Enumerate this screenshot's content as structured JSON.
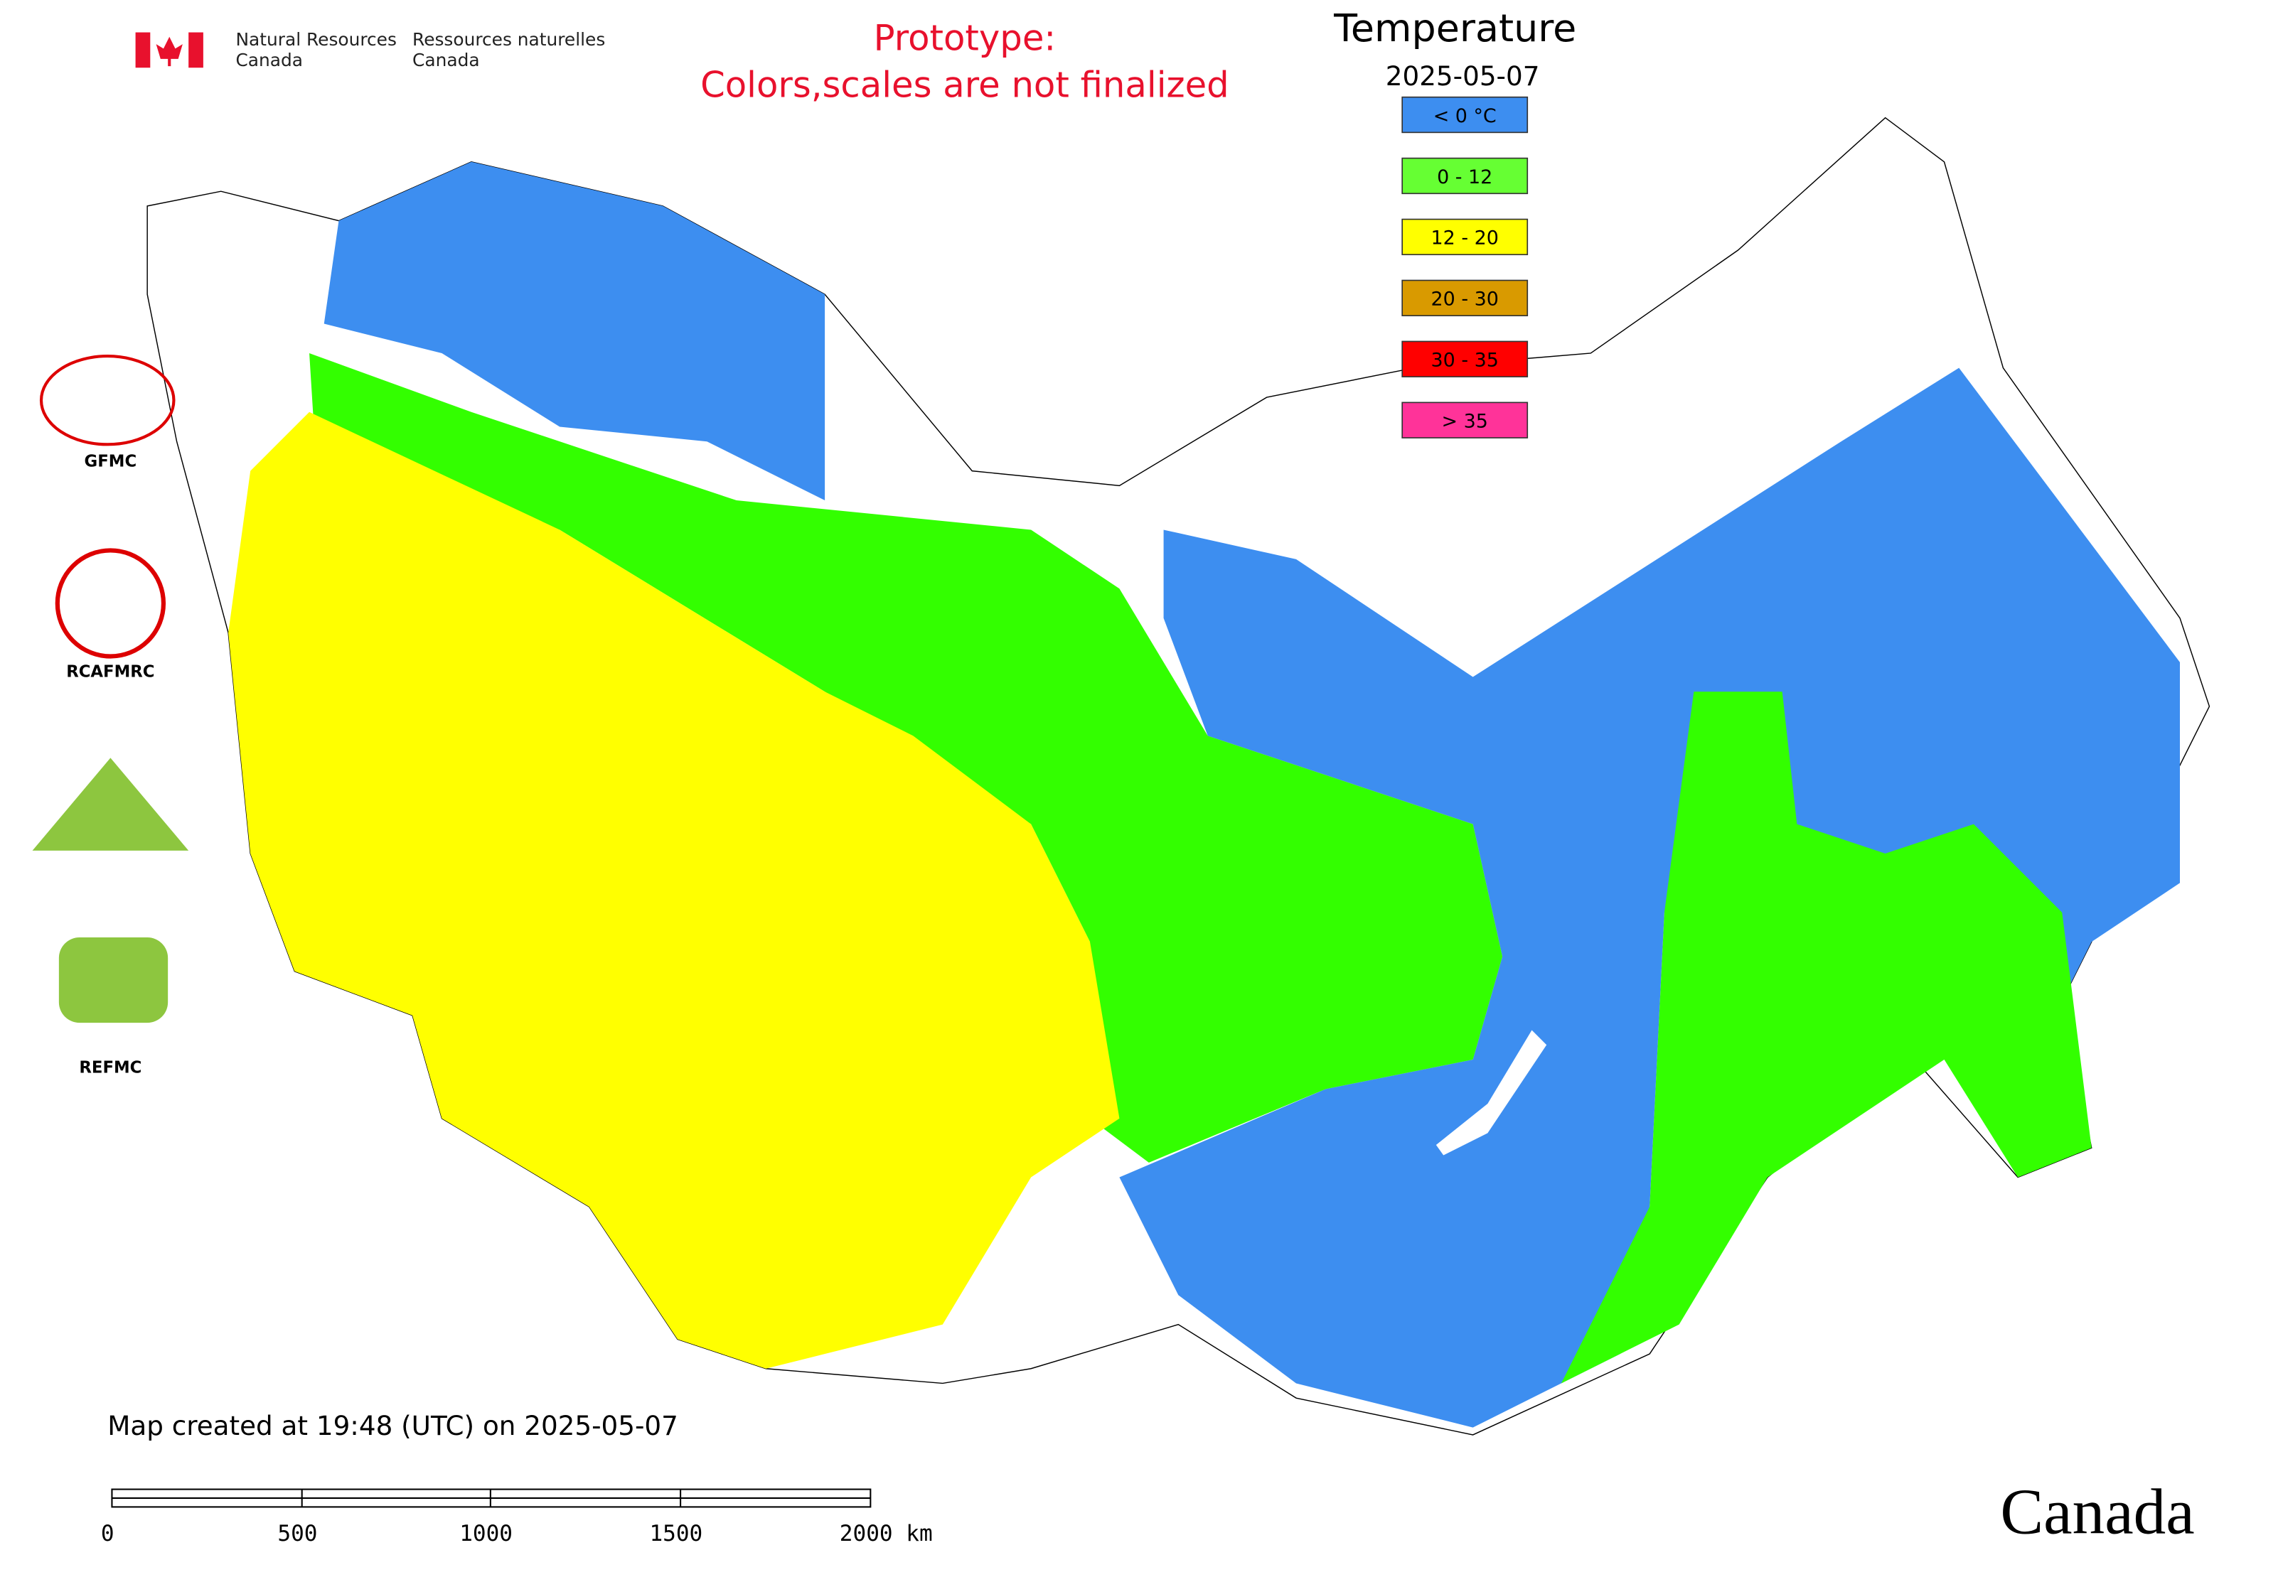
{
  "header": {
    "agency_en": [
      "Natural Resources",
      "Canada"
    ],
    "agency_fr": [
      "Ressources naturelles",
      "Canada"
    ]
  },
  "notice": [
    "Prototype:",
    "Colors,scales are not finalized"
  ],
  "legend": {
    "title": "Temperature",
    "date": "2025-05-07",
    "items": [
      {
        "label": "< 0 °C",
        "color": "#3d8ef0"
      },
      {
        "label": "0 - 12",
        "color": "#66ff33"
      },
      {
        "label": "12 - 20",
        "color": "#ffff00"
      },
      {
        "label": "20 - 30",
        "color": "#d99a00"
      },
      {
        "label": "30 - 35",
        "color": "#ff0000"
      },
      {
        "label": "> 35",
        "color": "#ff3399"
      }
    ]
  },
  "logos": [
    "GFMC",
    "RCAFMRC",
    "REFMC"
  ],
  "footer": {
    "created": "Map created at 19:48 (UTC) on 2025-05-07",
    "scale": [
      "0",
      "500",
      "1000",
      "1500",
      "2000 km"
    ],
    "wordmark": "Canada"
  }
}
